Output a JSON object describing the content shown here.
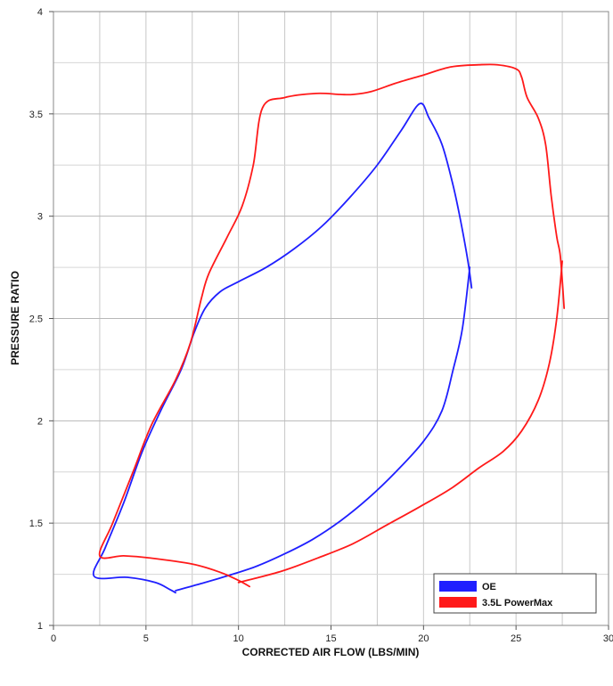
{
  "chart_data": {
    "type": "line",
    "title": "",
    "xlabel": "CORRECTED AIR FLOW (LBS/MIN)",
    "ylabel": "PRESSURE RATIO",
    "xlim": [
      0,
      30
    ],
    "ylim": [
      1,
      4
    ],
    "x_ticks": [
      0,
      5,
      10,
      15,
      20,
      25,
      30
    ],
    "y_ticks": [
      1,
      1.5,
      2,
      2.5,
      3,
      3.5,
      4
    ],
    "x_tick_labels": [
      "0",
      "5",
      "10",
      "15",
      "20",
      "25",
      "30"
    ],
    "y_tick_labels": [
      "1",
      "1.5",
      "2",
      "2.5",
      "3",
      "3.5",
      "4"
    ],
    "grid": true,
    "legend_position": "bottom-right",
    "series": [
      {
        "name": "OE",
        "color": "#1f1fff",
        "points": [
          [
            6.6,
            1.16
          ],
          [
            6.3,
            1.175
          ],
          [
            5.5,
            1.21
          ],
          [
            4.0,
            1.235
          ],
          [
            2.2,
            1.24
          ],
          [
            2.8,
            1.38
          ],
          [
            3.8,
            1.6
          ],
          [
            4.8,
            1.85
          ],
          [
            5.8,
            2.05
          ],
          [
            6.9,
            2.25
          ],
          [
            7.6,
            2.43
          ],
          [
            8.2,
            2.55
          ],
          [
            9.0,
            2.63
          ],
          [
            10.0,
            2.68
          ],
          [
            11.5,
            2.75
          ],
          [
            13.0,
            2.84
          ],
          [
            14.5,
            2.95
          ],
          [
            16.0,
            3.09
          ],
          [
            17.5,
            3.25
          ],
          [
            18.8,
            3.42
          ],
          [
            19.8,
            3.55
          ],
          [
            20.3,
            3.48
          ],
          [
            21.0,
            3.35
          ],
          [
            21.6,
            3.15
          ],
          [
            22.0,
            2.98
          ],
          [
            22.4,
            2.78
          ],
          [
            22.6,
            2.65
          ]
        ],
        "return_points": [
          [
            22.5,
            2.75
          ],
          [
            22.1,
            2.45
          ],
          [
            21.6,
            2.25
          ],
          [
            21.0,
            2.05
          ],
          [
            20.0,
            1.9
          ],
          [
            18.5,
            1.75
          ],
          [
            17.0,
            1.62
          ],
          [
            15.5,
            1.51
          ],
          [
            14.0,
            1.42
          ],
          [
            12.5,
            1.35
          ],
          [
            11.0,
            1.29
          ],
          [
            9.5,
            1.245
          ],
          [
            8.0,
            1.205
          ],
          [
            6.6,
            1.17
          ]
        ]
      },
      {
        "name": "3.5L PowerMax",
        "color": "#ff1a1a",
        "points": [
          [
            10.6,
            1.19
          ],
          [
            10.0,
            1.22
          ],
          [
            9.0,
            1.26
          ],
          [
            7.5,
            1.3
          ],
          [
            5.2,
            1.33
          ],
          [
            3.8,
            1.34
          ],
          [
            2.5,
            1.34
          ],
          [
            3.2,
            1.5
          ],
          [
            4.3,
            1.75
          ],
          [
            5.3,
            1.98
          ],
          [
            6.6,
            2.2
          ],
          [
            7.4,
            2.38
          ],
          [
            8.0,
            2.6
          ],
          [
            8.4,
            2.72
          ],
          [
            9.4,
            2.9
          ],
          [
            10.2,
            3.05
          ],
          [
            10.8,
            3.25
          ],
          [
            11.3,
            3.53
          ],
          [
            12.5,
            3.58
          ],
          [
            14.2,
            3.6
          ],
          [
            15.5,
            3.595
          ],
          [
            16.2,
            3.595
          ],
          [
            17.2,
            3.61
          ],
          [
            18.5,
            3.65
          ],
          [
            20.0,
            3.69
          ],
          [
            21.5,
            3.73
          ],
          [
            23.0,
            3.74
          ],
          [
            24.0,
            3.74
          ],
          [
            25.0,
            3.72
          ],
          [
            25.3,
            3.68
          ],
          [
            25.6,
            3.58
          ],
          [
            26.2,
            3.48
          ],
          [
            26.6,
            3.35
          ],
          [
            26.9,
            3.1
          ],
          [
            27.2,
            2.9
          ],
          [
            27.4,
            2.8
          ],
          [
            27.6,
            2.55
          ]
        ],
        "return_points": [
          [
            27.5,
            2.78
          ],
          [
            27.2,
            2.5
          ],
          [
            26.8,
            2.28
          ],
          [
            26.2,
            2.1
          ],
          [
            25.3,
            1.95
          ],
          [
            24.3,
            1.85
          ],
          [
            23.0,
            1.77
          ],
          [
            21.5,
            1.67
          ],
          [
            19.8,
            1.58
          ],
          [
            18.0,
            1.49
          ],
          [
            16.2,
            1.4
          ],
          [
            14.3,
            1.33
          ],
          [
            12.5,
            1.27
          ],
          [
            10.9,
            1.23
          ],
          [
            10.0,
            1.21
          ]
        ]
      }
    ]
  }
}
